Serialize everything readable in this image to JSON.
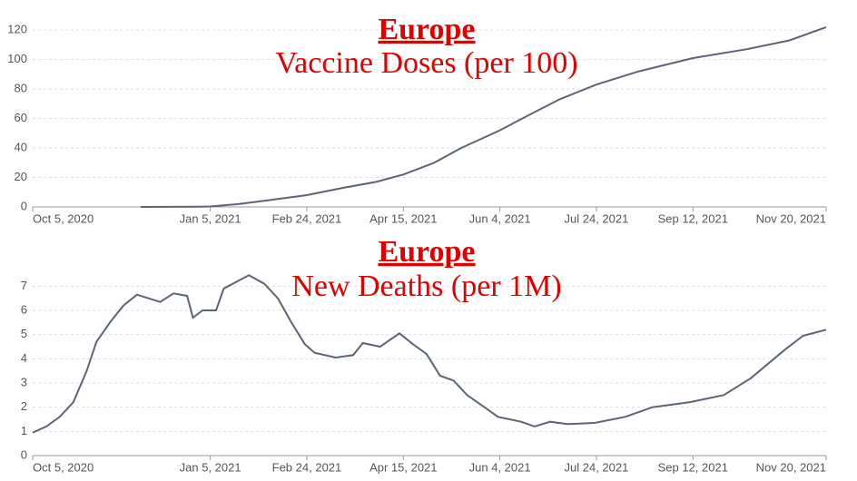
{
  "chart_data": [
    {
      "type": "line",
      "title": "Europe",
      "subtitle": "Vaccine Doses (per 100)",
      "x": [
        "2020-11-30",
        "2020-12-31",
        "2021-01-05",
        "2021-01-20",
        "2021-02-01",
        "2021-02-24",
        "2021-03-15",
        "2021-04-01",
        "2021-04-15",
        "2021-05-01",
        "2021-05-15",
        "2021-06-04",
        "2021-06-20",
        "2021-07-05",
        "2021-07-24",
        "2021-08-15",
        "2021-09-12",
        "2021-10-10",
        "2021-11-01",
        "2021-11-20"
      ],
      "series": [
        {
          "color": "#5b6573",
          "values": [
            0,
            0.2,
            0.3,
            2,
            4,
            8,
            13,
            17,
            22,
            30,
            40,
            52,
            63,
            73,
            83,
            92,
            101,
            107,
            113,
            122
          ]
        }
      ],
      "xlim": [
        "2020-10-05",
        "2021-11-20"
      ],
      "xticks": [
        {
          "value": "2020-10-05",
          "label": "Oct 5, 2020"
        },
        {
          "value": "2021-01-05",
          "label": "Jan 5, 2021"
        },
        {
          "value": "2021-02-24",
          "label": "Feb 24, 2021"
        },
        {
          "value": "2021-04-15",
          "label": "Apr 15, 2021"
        },
        {
          "value": "2021-06-04",
          "label": "Jun 4, 2021"
        },
        {
          "value": "2021-07-24",
          "label": "Jul 24, 2021"
        },
        {
          "value": "2021-09-12",
          "label": "Sep 12, 2021"
        },
        {
          "value": "2021-11-20",
          "label": "Nov 20, 2021"
        }
      ],
      "ylim": [
        0,
        125
      ],
      "yticks": [
        0,
        20,
        40,
        60,
        80,
        100,
        120
      ],
      "grid": true
    },
    {
      "type": "line",
      "title": "Europe",
      "subtitle": "New Deaths (per 1M)",
      "x": [
        "2020-10-05",
        "2020-10-12",
        "2020-10-19",
        "2020-10-26",
        "2020-11-02",
        "2020-11-07",
        "2020-11-14",
        "2020-11-21",
        "2020-11-28",
        "2020-12-10",
        "2020-12-17",
        "2020-12-24",
        "2020-12-27",
        "2021-01-01",
        "2021-01-08",
        "2021-01-12",
        "2021-01-19",
        "2021-01-25",
        "2021-02-02",
        "2021-02-09",
        "2021-02-16",
        "2021-02-23",
        "2021-02-28",
        "2021-03-11",
        "2021-03-20",
        "2021-03-25",
        "2021-04-03",
        "2021-04-13",
        "2021-04-20",
        "2021-04-27",
        "2021-05-04",
        "2021-05-11",
        "2021-05-18",
        "2021-05-27",
        "2021-06-03",
        "2021-06-15",
        "2021-06-22",
        "2021-06-30",
        "2021-07-09",
        "2021-07-23",
        "2021-08-08",
        "2021-08-22",
        "2021-09-10",
        "2021-09-28",
        "2021-10-12",
        "2021-10-21",
        "2021-10-30",
        "2021-11-08",
        "2021-11-20"
      ],
      "series": [
        {
          "color": "#5b6573",
          "values": [
            0.95,
            1.2,
            1.6,
            2.2,
            3.5,
            4.7,
            5.5,
            6.2,
            6.65,
            6.35,
            6.7,
            6.6,
            5.7,
            6.0,
            6.0,
            6.9,
            7.2,
            7.45,
            7.1,
            6.5,
            5.5,
            4.6,
            4.25,
            4.05,
            4.15,
            4.65,
            4.5,
            5.05,
            4.6,
            4.2,
            3.3,
            3.1,
            2.5,
            2.0,
            1.6,
            1.4,
            1.2,
            1.4,
            1.3,
            1.35,
            1.6,
            2.0,
            2.2,
            2.5,
            3.2,
            3.8,
            4.4,
            4.95,
            5.2
          ]
        }
      ],
      "xlim": [
        "2020-10-05",
        "2021-11-20"
      ],
      "xticks": [
        {
          "value": "2020-10-05",
          "label": "Oct 5, 2020"
        },
        {
          "value": "2021-01-05",
          "label": "Jan 5, 2021"
        },
        {
          "value": "2021-02-24",
          "label": "Feb 24, 2021"
        },
        {
          "value": "2021-04-15",
          "label": "Apr 15, 2021"
        },
        {
          "value": "2021-06-04",
          "label": "Jun 4, 2021"
        },
        {
          "value": "2021-07-24",
          "label": "Jul 24, 2021"
        },
        {
          "value": "2021-09-12",
          "label": "Sep 12, 2021"
        },
        {
          "value": "2021-11-20",
          "label": "Nov 20, 2021"
        }
      ],
      "ylim": [
        0,
        7.5
      ],
      "yticks": [
        0,
        1,
        2,
        3,
        4,
        5,
        6,
        7
      ],
      "grid": true
    }
  ]
}
